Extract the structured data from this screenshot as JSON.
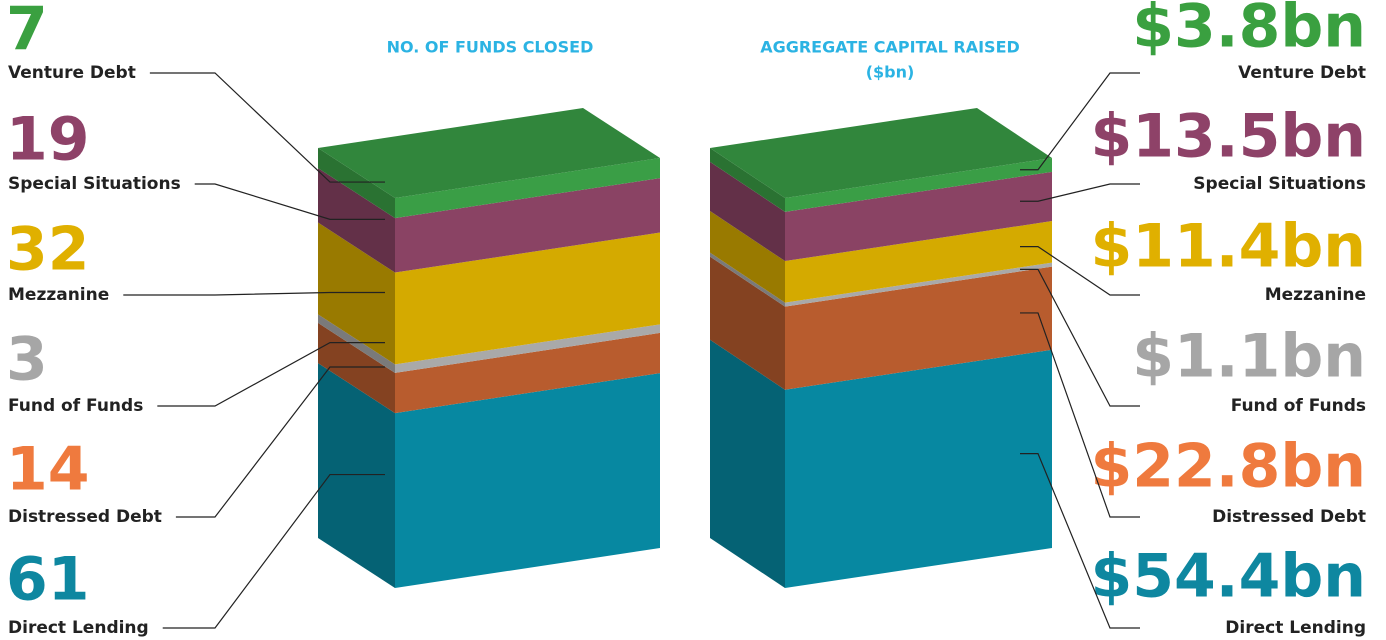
{
  "chart_data": [
    {
      "type": "block",
      "title": "NO. OF FUNDS CLOSED",
      "categories": [
        "Venture Debt",
        "Special Situations",
        "Mezzanine",
        "Fund of Funds",
        "Distressed Debt",
        "Direct Lending"
      ],
      "values": [
        7,
        19,
        32,
        3,
        14,
        61
      ],
      "colors": [
        "#3a9e46",
        "#8a4364",
        "#d4aa00",
        "#a9a9a9",
        "#b85c2e",
        "#0788a1"
      ],
      "label_colors": [
        "#3aa040",
        "#8e4268",
        "#e0b000",
        "#a6a6a6",
        "#ef7a3e",
        "#0e87a0"
      ]
    },
    {
      "type": "block",
      "title": "AGGREGATE CAPITAL RAISED",
      "subtitle": "($bn)",
      "categories": [
        "Venture Debt",
        "Special Situations",
        "Mezzanine",
        "Fund of Funds",
        "Distressed Debt",
        "Direct Lending"
      ],
      "values": [
        3.8,
        13.5,
        11.4,
        1.1,
        22.8,
        54.4
      ],
      "value_labels": [
        "$3.8bn",
        "$13.5bn",
        "$11.4bn",
        "$1.1bn",
        "$22.8bn",
        "$54.4bn"
      ],
      "colors": [
        "#3a9e46",
        "#8a4364",
        "#d4aa00",
        "#a9a9a9",
        "#b85c2e",
        "#0788a1"
      ],
      "label_colors": [
        "#3aa040",
        "#8e4268",
        "#e0b000",
        "#a6a6a6",
        "#ef7a3e",
        "#0e87a0"
      ]
    }
  ]
}
